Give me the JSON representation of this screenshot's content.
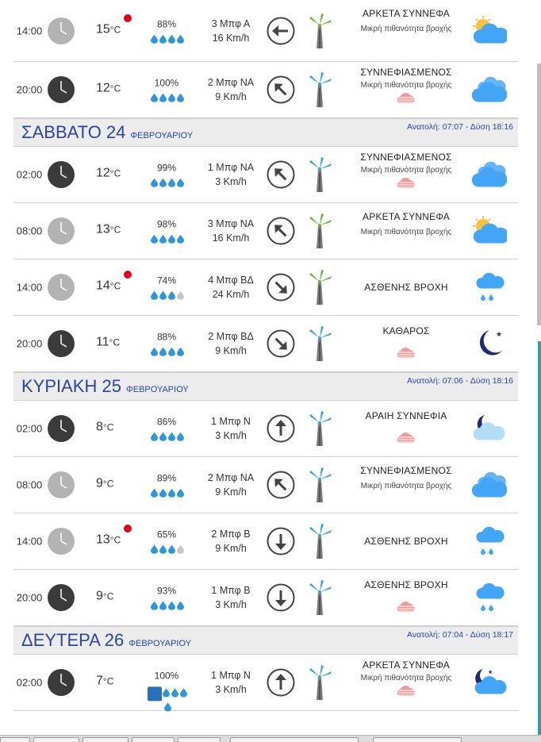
{
  "units": {
    "temp": "°C"
  },
  "days": [
    {
      "header": null,
      "rows": [
        {
          "time": "14:00",
          "clock": "day",
          "temp": "15",
          "warm": true,
          "hum": "88%",
          "drops": 4,
          "wind": "3 Μπφ Α",
          "speed": "16 Km/h",
          "dir": "W",
          "turb": "green",
          "cond": "ΑΡΚΕΤΑ ΣΥΝΝΕΦΑ",
          "sub": "Μικρή πιθανότητα βροχής",
          "subcloud": false,
          "icon": "sun-cloud"
        },
        {
          "time": "20:00",
          "clock": "night",
          "temp": "12",
          "warm": false,
          "hum": "100%",
          "drops": 4,
          "wind": "2 Μπφ ΝΑ",
          "speed": "9 Km/h",
          "dir": "NW",
          "turb": "blue",
          "cond": "ΣΥΝΝΕΦΙΑΣΜΕΝΟΣ",
          "sub": "Μικρή πιθανότητα βροχής",
          "subcloud": true,
          "icon": "clouds"
        }
      ]
    },
    {
      "header": {
        "day": "ΣΑΒΒΑΤΟ 24",
        "month": "ΦΕΒΡΟΥΑΡΙΟΥ",
        "sun": "Ανατολή: 07:07  - Δύση 18:16"
      },
      "rows": [
        {
          "time": "02:00",
          "clock": "night",
          "temp": "12",
          "warm": false,
          "hum": "99%",
          "drops": 4,
          "wind": "1 Μπφ ΝΑ",
          "speed": "3 Km/h",
          "dir": "NW",
          "turb": "blue",
          "cond": "ΣΥΝΝΕΦΙΑΣΜΕΝΟΣ",
          "sub": "Μικρή πιθανότητα βροχής",
          "subcloud": true,
          "icon": "clouds"
        },
        {
          "time": "08:00",
          "clock": "day",
          "temp": "13",
          "warm": false,
          "hum": "98%",
          "drops": 4,
          "wind": "3 Μπφ ΝΑ",
          "speed": "16 Km/h",
          "dir": "NW",
          "turb": "green",
          "cond": "ΑΡΚΕΤΑ ΣΥΝΝΕΦΑ",
          "sub": "Μικρή πιθανότητα βροχής",
          "subcloud": false,
          "icon": "sun-cloud"
        },
        {
          "time": "14:00",
          "clock": "day",
          "temp": "14",
          "warm": true,
          "hum": "74%",
          "drops": 3,
          "wind": "4 Μπφ ΒΔ",
          "speed": "24 Km/h",
          "dir": "SE",
          "turb": "green",
          "cond": "ΑΣΘΕΝΗΣ ΒΡΟΧΗ",
          "sub": "",
          "subcloud": false,
          "icon": "rain"
        },
        {
          "time": "20:00",
          "clock": "night",
          "temp": "11",
          "warm": false,
          "hum": "88%",
          "drops": 4,
          "wind": "2 Μπφ ΒΔ",
          "speed": "9 Km/h",
          "dir": "SE",
          "turb": "blue",
          "cond": "ΚΑΘΑΡΟΣ",
          "sub": "",
          "subcloud": true,
          "icon": "moon"
        }
      ]
    },
    {
      "header": {
        "day": "ΚΥΡΙΑΚΗ 25",
        "month": "ΦΕΒΡΟΥΑΡΙΟΥ",
        "sun": "Ανατολή: 07:06  - Δύση 18:16"
      },
      "rows": [
        {
          "time": "02:00",
          "clock": "night",
          "temp": "8",
          "warm": false,
          "hum": "86%",
          "drops": 4,
          "wind": "1 Μπφ Ν",
          "speed": "3 Km/h",
          "dir": "N",
          "turb": "blue",
          "cond": "ΑΡΑΙΗ ΣΥΝΝΕΦΙΑ",
          "sub": "",
          "subcloud": true,
          "icon": "moon-cloud-light"
        },
        {
          "time": "08:00",
          "clock": "day",
          "temp": "9",
          "warm": false,
          "hum": "89%",
          "drops": 4,
          "wind": "2 Μπφ ΝΑ",
          "speed": "9 Km/h",
          "dir": "NW",
          "turb": "blue",
          "cond": "ΣΥΝΝΕΦΙΑΣΜΕΝΟΣ",
          "sub": "Μικρή πιθανότητα βροχής",
          "subcloud": false,
          "icon": "clouds"
        },
        {
          "time": "14:00",
          "clock": "day",
          "temp": "13",
          "warm": true,
          "hum": "65%",
          "drops": 3,
          "wind": "2 Μπφ Β",
          "speed": "9 Km/h",
          "dir": "S",
          "turb": "blue",
          "cond": "ΑΣΘΕΝΗΣ ΒΡΟΧΗ",
          "sub": "",
          "subcloud": false,
          "icon": "rain"
        },
        {
          "time": "20:00",
          "clock": "night",
          "temp": "9",
          "warm": false,
          "hum": "93%",
          "drops": 4,
          "wind": "1 Μπφ Β",
          "speed": "3 Km/h",
          "dir": "S",
          "turb": "blue",
          "cond": "ΑΣΘΕΝΗΣ ΒΡΟΧΗ",
          "sub": "",
          "subcloud": true,
          "icon": "rain"
        }
      ]
    },
    {
      "header": {
        "day": "ΔΕΥΤΕΡΑ 26",
        "month": "ΦΕΒΡΟΥΑΡΙΟΥ",
        "sun": "Ανατολή: 07:04  - Δύση 18:17"
      },
      "rows": [
        {
          "time": "02:00",
          "clock": "night",
          "temp": "7",
          "warm": false,
          "hum": "100%",
          "drops": 4,
          "wind": "1 Μπφ Ν",
          "speed": "3 Km/h",
          "dir": "N",
          "turb": "blue",
          "cond": "ΑΡΚΕΤΑ ΣΥΝΝΕΦΑ",
          "sub": "Μικρή πιθανότητα βροχής",
          "subcloud": true,
          "icon": "moon-cloud",
          "health": true
        }
      ]
    }
  ],
  "colors": {
    "accent": "#2b44a6",
    "drop": "#2f96d8",
    "turb_green": "#6cb33f",
    "turb_blue": "#3a9fd6",
    "cloud": "#42a5f5",
    "warm": "#e3001b"
  }
}
